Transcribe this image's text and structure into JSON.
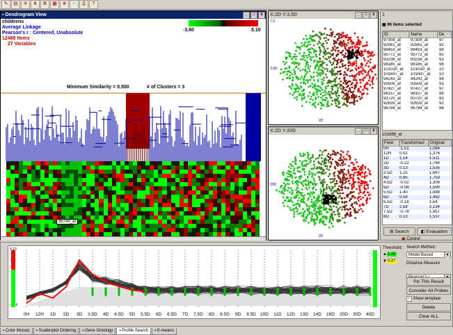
{
  "toolbar_buttons": [
    "open",
    "save",
    "cluster",
    "dendro",
    "tree",
    "chart",
    "zoom",
    "scatter",
    "print",
    "help"
  ],
  "dendrogram": {
    "title": "Dendrogram View",
    "dataset": "childrens",
    "linkage": "Average Linkage",
    "correlation": "Pearson's r : Centered, Unabsolute",
    "items_count": "12488",
    "items_label": "Items",
    "variables_count": "27",
    "variables_label": "Variables",
    "scale_min": "-3.60",
    "scale_max": "5.10",
    "min_similarity": "Minimum Similarity = 0.500",
    "clusters": "# of Clusters = 3",
    "gene_label": "96749_at",
    "colors": {
      "low": "#00ff00",
      "high": "#ff0000",
      "cluster1": "#0000a0",
      "cluster2": "#a00000"
    }
  },
  "scatter1": {
    "title": "X:2D Y:3.5D",
    "y_axis": "3.5D",
    "x_axis": "2D",
    "y_top": "7.0"
  },
  "scatter2": {
    "title": "X:2D Y:20D",
    "y_axis": "20D",
    "x_axis": "2D"
  },
  "side": {
    "title": "1",
    "selected_label": "66 items selected",
    "columns": [
      "ID",
      "Name",
      "De"
    ],
    "rows": [
      [
        "97308_at",
        "97308_at",
        "97"
      ],
      [
        "92561_at",
        "92561_at",
        "92"
      ],
      [
        "98453_at",
        "98453_at",
        "98"
      ],
      [
        "95772_at",
        "95772_at",
        "95"
      ],
      [
        "93238_at",
        "93238_at",
        "93"
      ],
      [
        "98185_at",
        "98185_at",
        "98"
      ],
      [
        "101030_at",
        "101030_at",
        "10"
      ],
      [
        "101697_at",
        "101697_at",
        "10"
      ],
      [
        "94243_at",
        "94243_at",
        "94"
      ],
      [
        "93506_at",
        "93506_at",
        "93"
      ],
      [
        "97427_at",
        "97427_at",
        "97"
      ],
      [
        "98157_at",
        "98157_at",
        "98"
      ],
      [
        "93720_at",
        "93720_at",
        "93"
      ],
      [
        "92639_at",
        "92639_at",
        "92"
      ],
      [
        "96794_at",
        "96794_at",
        "96"
      ]
    ],
    "gene": "101696_at",
    "columns2": [
      "Field",
      "Transformed",
      "Original"
    ],
    "rows2": [
      [
        "0H",
        "-1.51",
        "1,084"
      ],
      [
        "12H",
        "0.02",
        "1,376"
      ],
      [
        "1D",
        "1.14",
        "1,511"
      ],
      [
        "2D",
        "-0.22",
        "1,764"
      ],
      [
        "3D",
        "0.13",
        "1,535"
      ],
      [
        "3.5D",
        "1.25",
        "1,667"
      ],
      [
        "4D",
        "0.65",
        "1,753"
      ],
      [
        "4.5D",
        "-0.02",
        "1,306"
      ],
      [
        "5D",
        "-0.08",
        "1,590"
      ],
      [
        "5.5D",
        "1.40",
        "1,888"
      ],
      [
        "6D",
        "0.59",
        "1,492"
      ],
      [
        "6.5D",
        "-0.16",
        "1,54"
      ],
      [
        "7D",
        "2.58",
        "2,134"
      ],
      [
        "7.5D",
        "-0.78",
        "1,457"
      ],
      [
        "8D",
        "0.13",
        "1,537"
      ]
    ],
    "search_tab": "Search",
    "evaluation_tab": "Evaluation",
    "control_label": "Control"
  },
  "profile": {
    "y_top": "5.10",
    "y_bottom": "-3.60",
    "threshold_label": "Threshold :",
    "threshold_hi": "1.00",
    "threshold_lo": "0.87",
    "x_labels": [
      "0H",
      "12H",
      "1D",
      "2D",
      "3D",
      "3.5D",
      "4D",
      "4.5D",
      "5D",
      "5.5D",
      "6D",
      "6.5D",
      "7D",
      "7.5D",
      "8D",
      "8.5D",
      "9D",
      "9.5D",
      "10D",
      "11D",
      "12D",
      "13D",
      "14D",
      "16D",
      "20D",
      "30D",
      "40D"
    ],
    "search_method_label": "Search Method :",
    "search_method_value": "Model Based",
    "distance_label": "Distance Measure",
    "distance_value": "Pearson's r",
    "btn_pin": "Pin This Result",
    "btn_consider": "Consider All Probes",
    "show_template": "Show template",
    "btn_delete": "Delete",
    "btn_clear": "Clear ALL",
    "model_profile": [
      -3.0,
      -1.5,
      -2.2,
      -0.5,
      3.6,
      1.4,
      0.3,
      -0.4,
      -1.0,
      -1.2
    ]
  },
  "bottom_tabs": [
    "Color Mosaic",
    "Scatterplot Ordering",
    "Gene Ontology",
    "Profile Search",
    "K-means"
  ]
}
